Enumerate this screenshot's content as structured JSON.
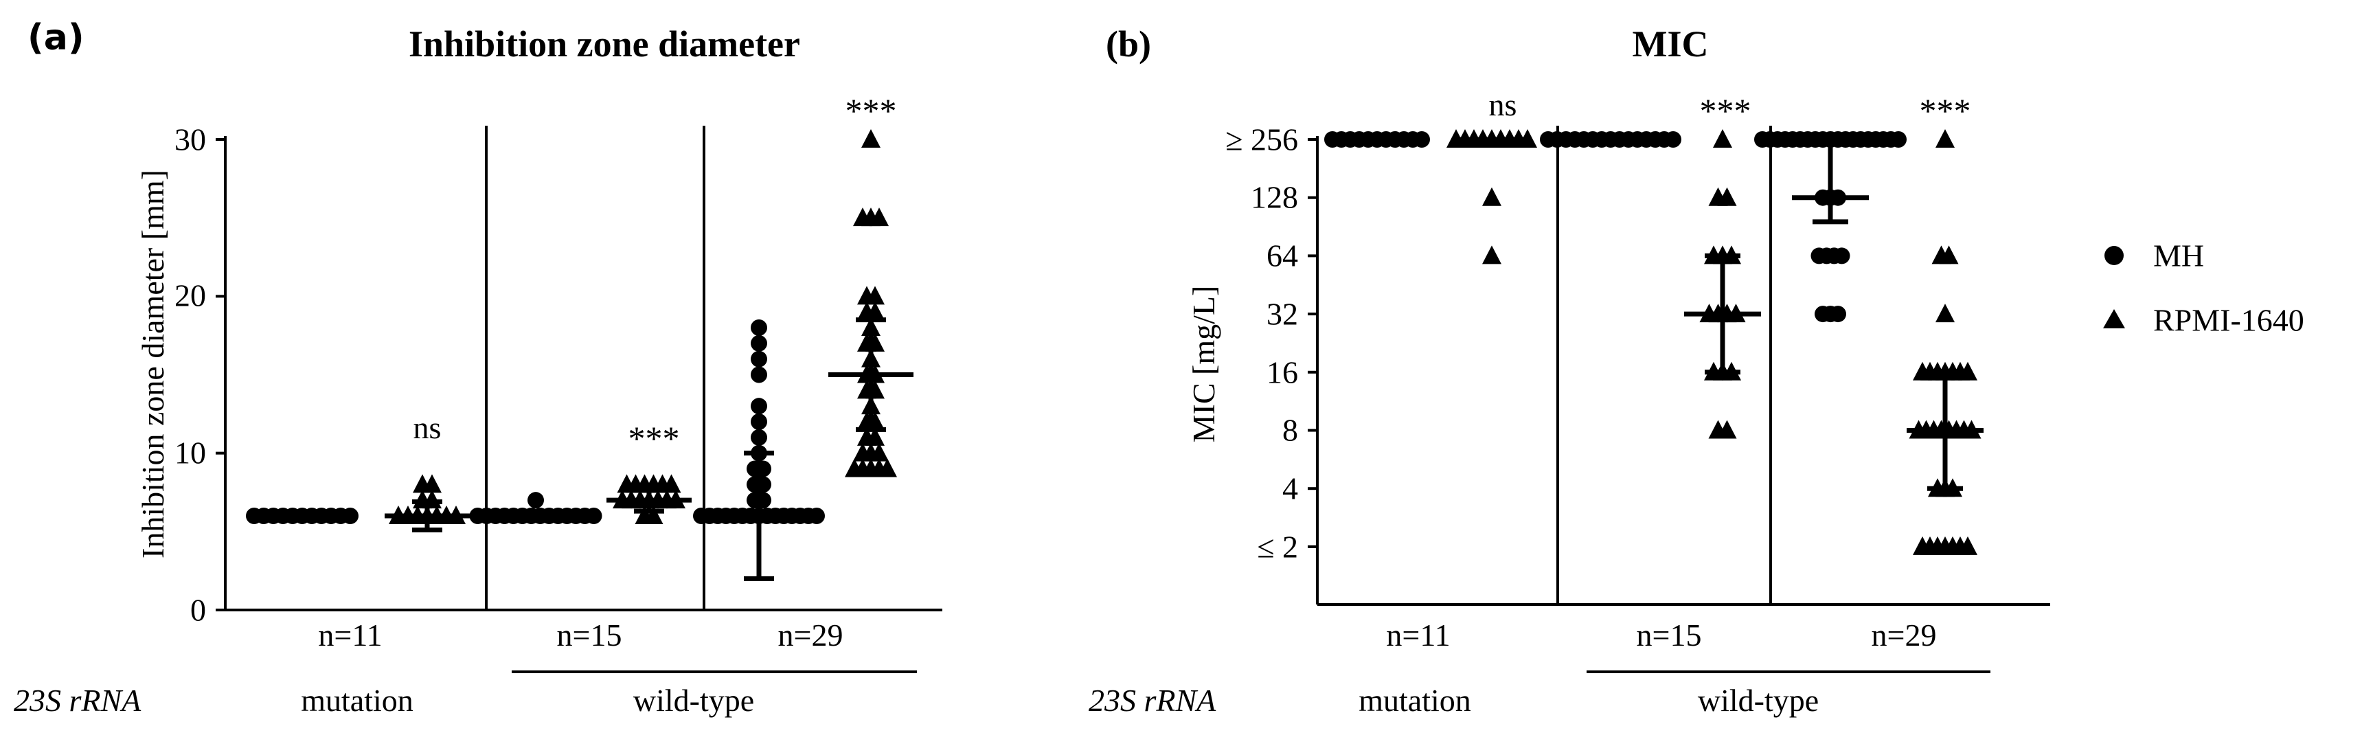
{
  "chart_data": [
    {
      "panel_label": "(a)",
      "type": "scatter",
      "title": "Inhibition zone diameter",
      "ylabel": "Inhibition zone diameter [mm]",
      "ylim": [
        0,
        30
      ],
      "yticks": [
        "0",
        "10",
        "20",
        "30"
      ],
      "groups": [
        {
          "n_label": "n=11",
          "genotype": "mutation",
          "MH": {
            "values": [
              6,
              6,
              6,
              6,
              6,
              6,
              6,
              6,
              6,
              6,
              6
            ],
            "mean": 6,
            "sd": 0
          },
          "RPMI": {
            "values": [
              6,
              6,
              6,
              6,
              6,
              6,
              6,
              7,
              7,
              8,
              8
            ],
            "mean": 6,
            "sd": 0.9
          },
          "significance": "ns"
        },
        {
          "n_label": "n=15",
          "genotype": "wild-type",
          "MH": {
            "values": [
              6,
              6,
              6,
              6,
              6,
              6,
              6,
              6,
              6,
              6,
              6,
              6,
              6,
              6,
              7
            ],
            "mean": 6,
            "sd": 0.3
          },
          "RPMI": {
            "values": [
              6,
              6,
              7,
              7,
              7,
              7,
              7,
              7,
              7,
              8,
              8,
              8,
              8,
              8,
              8
            ],
            "mean": 7,
            "sd": 0.7
          },
          "significance": "***"
        },
        {
          "n_label": "n=29",
          "genotype": "wild-type",
          "MH": {
            "values": [
              6,
              6,
              6,
              6,
              6,
              6,
              6,
              6,
              6,
              6,
              6,
              6,
              6,
              6,
              6,
              7,
              7,
              8,
              8,
              9,
              9,
              10,
              11,
              12,
              13,
              15,
              16,
              17,
              18
            ],
            "mean": 6,
            "sd": 4
          },
          "RPMI": {
            "values": [
              9,
              9,
              9,
              9,
              9,
              10,
              10,
              10,
              11,
              11,
              12,
              12,
              13,
              14,
              14,
              15,
              15,
              16,
              17,
              17,
              18,
              19,
              19,
              20,
              20,
              25,
              25,
              25,
              30
            ],
            "mean": 15,
            "sd": 3.5
          },
          "significance": "***"
        }
      ]
    },
    {
      "panel_label": "(b)",
      "type": "scatter",
      "title": "MIC",
      "ylabel": "MIC [mg/L]",
      "yscale": "log2",
      "ylim": [
        1,
        256
      ],
      "yticks": [
        "≥ 256",
        "128",
        "64",
        "32",
        "16",
        "8",
        "4",
        "≤ 2"
      ],
      "groups": [
        {
          "n_label": "n=11",
          "genotype": "mutation",
          "MH": {
            "values": [
              256,
              256,
              256,
              256,
              256,
              256,
              256,
              256,
              256,
              256,
              256
            ],
            "center": 256,
            "low": 256,
            "high": 256
          },
          "RPMI": {
            "values": [
              256,
              256,
              256,
              256,
              256,
              256,
              256,
              256,
              256,
              128,
              64
            ],
            "center": 256,
            "low": 256,
            "high": 256
          },
          "significance": "ns"
        },
        {
          "n_label": "n=15",
          "genotype": "wild-type",
          "MH": {
            "values": [
              256,
              256,
              256,
              256,
              256,
              256,
              256,
              256,
              256,
              256,
              256,
              256,
              256,
              256,
              256
            ],
            "center": 256,
            "low": 256,
            "high": 256
          },
          "RPMI": {
            "values": [
              256,
              128,
              128,
              64,
              64,
              64,
              32,
              32,
              32,
              32,
              16,
              16,
              16,
              8,
              8
            ],
            "center": 32,
            "low": 16,
            "high": 64
          },
          "significance": "***"
        },
        {
          "n_label": "n=29",
          "genotype": "wild-type",
          "MH": {
            "values": [
              256,
              256,
              256,
              256,
              256,
              256,
              256,
              256,
              256,
              256,
              256,
              256,
              256,
              256,
              256,
              256,
              256,
              256,
              256,
              128,
              128,
              128,
              64,
              64,
              64,
              64,
              32,
              32,
              32
            ],
            "center": 128,
            "low": 96,
            "high": 256
          },
          "RPMI": {
            "values": [
              256,
              64,
              64,
              32,
              16,
              16,
              16,
              16,
              16,
              16,
              16,
              8,
              8,
              8,
              8,
              8,
              8,
              8,
              8,
              4,
              4,
              4,
              2,
              2,
              2,
              2,
              2,
              2,
              2
            ],
            "center": 8,
            "low": 4,
            "high": 16
          },
          "significance": "***"
        }
      ]
    }
  ],
  "legend": {
    "placement": "right",
    "items": [
      {
        "name": "MH",
        "marker": "circle"
      },
      {
        "name": "RPMI-1640",
        "marker": "triangle"
      }
    ]
  },
  "row_label": "23S rRNA",
  "colors": {
    "ink": "#000000",
    "background": "#ffffff"
  }
}
